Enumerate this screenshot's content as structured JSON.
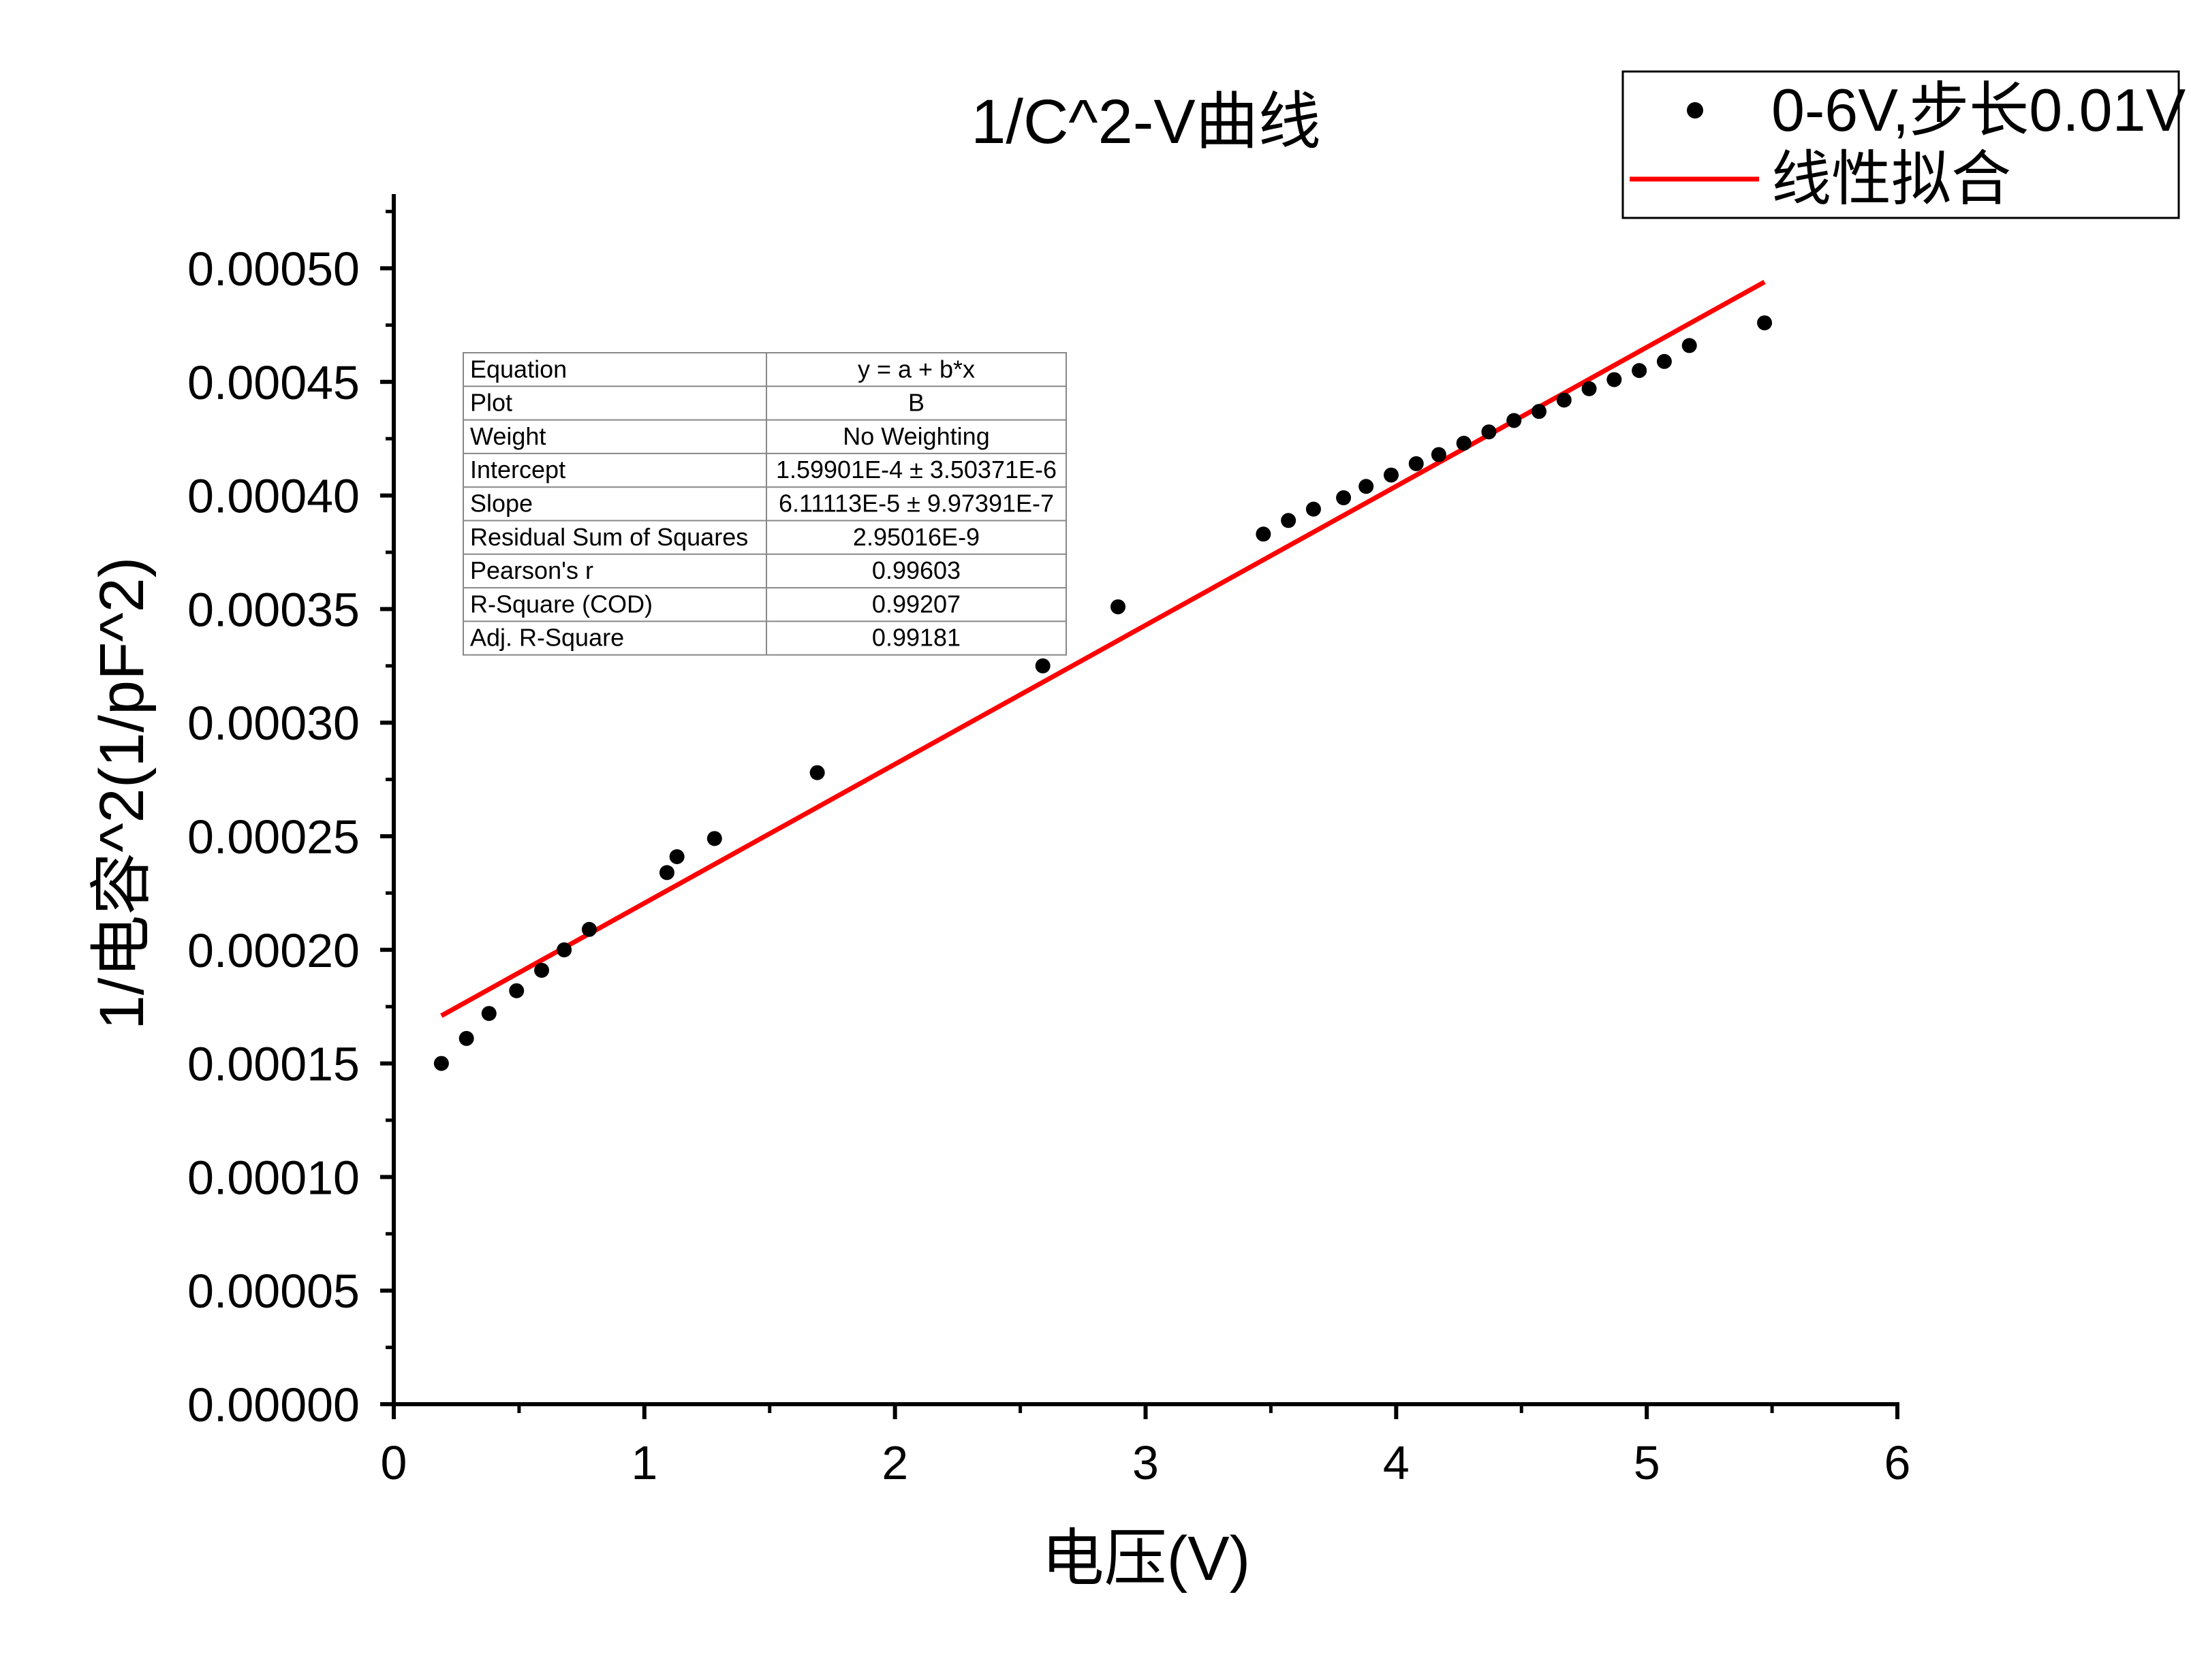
{
  "chart_data": {
    "type": "scatter",
    "title": "1/C^2-V曲线",
    "xlabel": "电压(V)",
    "ylabel": "1/电容^2(1/pF^2)",
    "xlim": [
      0,
      6
    ],
    "ylim": [
      0,
      0.000525
    ],
    "x_ticks": [
      "0",
      "1",
      "2",
      "3",
      "4",
      "5",
      "6"
    ],
    "y_ticks": [
      "0.00000",
      "0.00005",
      "0.00010",
      "0.00015",
      "0.00020",
      "0.00025",
      "0.00030",
      "0.00035",
      "0.00040",
      "0.00045",
      "0.00050"
    ],
    "grid": false,
    "legend_position": "top-right",
    "series": [
      {
        "name": "0-6V,步长0.01V",
        "kind": "scatter",
        "color": "#000000",
        "x": [
          0.19,
          0.29,
          0.38,
          0.49,
          0.59,
          0.68,
          0.78,
          1.09,
          1.13,
          1.28,
          1.69,
          2.59,
          2.89,
          3.47,
          3.57,
          3.67,
          3.79,
          3.88,
          3.98,
          4.08,
          4.17,
          4.27,
          4.37,
          4.47,
          4.57,
          4.67,
          4.77,
          4.87,
          4.97,
          5.07,
          5.17,
          5.47
        ],
        "y": [
          0.00015,
          0.000161,
          0.000172,
          0.000182,
          0.000191,
          0.0002,
          0.000209,
          0.000234,
          0.000241,
          0.000249,
          0.000278,
          0.000325,
          0.000351,
          0.000383,
          0.000389,
          0.000394,
          0.000399,
          0.000404,
          0.000409,
          0.000414,
          0.000418,
          0.000423,
          0.000428,
          0.000433,
          0.000437,
          0.000442,
          0.000447,
          0.000451,
          0.000455,
          0.000459,
          0.000466,
          0.000476
        ]
      },
      {
        "name": "线性拟合",
        "kind": "line",
        "color": "#ff0000",
        "x": [
          0.19,
          5.47
        ],
        "y": [
          0.000171,
          0.000494
        ]
      }
    ],
    "stats_table": {
      "rows": [
        [
          "Equation",
          "y = a + b*x"
        ],
        [
          "Plot",
          "B"
        ],
        [
          "Weight",
          "No Weighting"
        ],
        [
          "Intercept",
          "1.59901E-4 ± 3.50371E-6"
        ],
        [
          "Slope",
          "6.11113E-5 ± 9.97391E-7"
        ],
        [
          "Residual Sum of Squares",
          "2.95016E-9"
        ],
        [
          "Pearson's r",
          "0.99603"
        ],
        [
          "R-Square (COD)",
          "0.99207"
        ],
        [
          "Adj. R-Square",
          "0.99181"
        ]
      ]
    }
  }
}
